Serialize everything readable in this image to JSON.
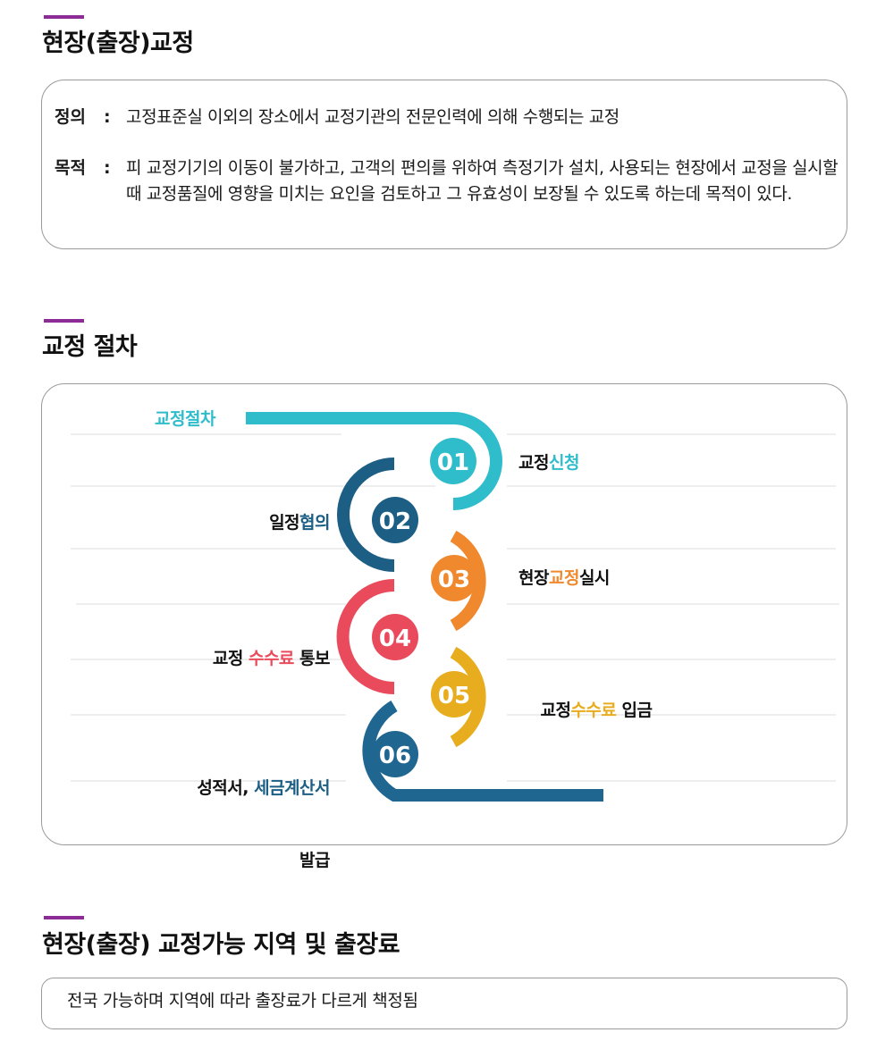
{
  "section1": {
    "title": "현장(출장)교정",
    "definition": {
      "label": "정의",
      "colon": ":",
      "text": "고정표준실 이외의 장소에서 교정기관의 전문인력에 의해 수행되는 교정"
    },
    "purpose": {
      "label": "목적",
      "colon": ":",
      "text": "피 교정기기의 이동이 불가하고, 고객의 편의를 위하여 측정기가 설치, 사용되는 현장에서 교정을 실시할 때 교정품질에 영향을 미치는 요인을 검토하고 그 유효성이 보장될 수 있도록 하는데 목적이 있다."
    }
  },
  "section2": {
    "title": "교정 절차",
    "header_label": "교정절차",
    "steps": [
      {
        "num": "01",
        "parts": [
          "교정",
          "신청"
        ]
      },
      {
        "num": "02",
        "parts": [
          "일정",
          "협의"
        ]
      },
      {
        "num": "03",
        "parts": [
          "현장",
          "교정",
          "실시"
        ]
      },
      {
        "num": "04",
        "parts": [
          "교정 ",
          "수수료",
          " 통보"
        ]
      },
      {
        "num": "05",
        "parts": [
          "교정",
          "수수료",
          " 입금"
        ]
      },
      {
        "num": "06",
        "parts": [
          "성적서, ",
          "세금계산서",
          "발급"
        ]
      }
    ],
    "colors": {
      "teal": "#2fbccb",
      "navy": "#1c5e84",
      "orange": "#f0892e",
      "red": "#ea4b5c",
      "yellow": "#e7ad1f",
      "blue": "#1f6690"
    }
  },
  "section3": {
    "title": "현장(출장) 교정가능 지역 및 출장료",
    "text": "전국 가능하며 지역에 따라 출장료가 다르게 책정됨"
  },
  "accent_color": "#8e2c97"
}
